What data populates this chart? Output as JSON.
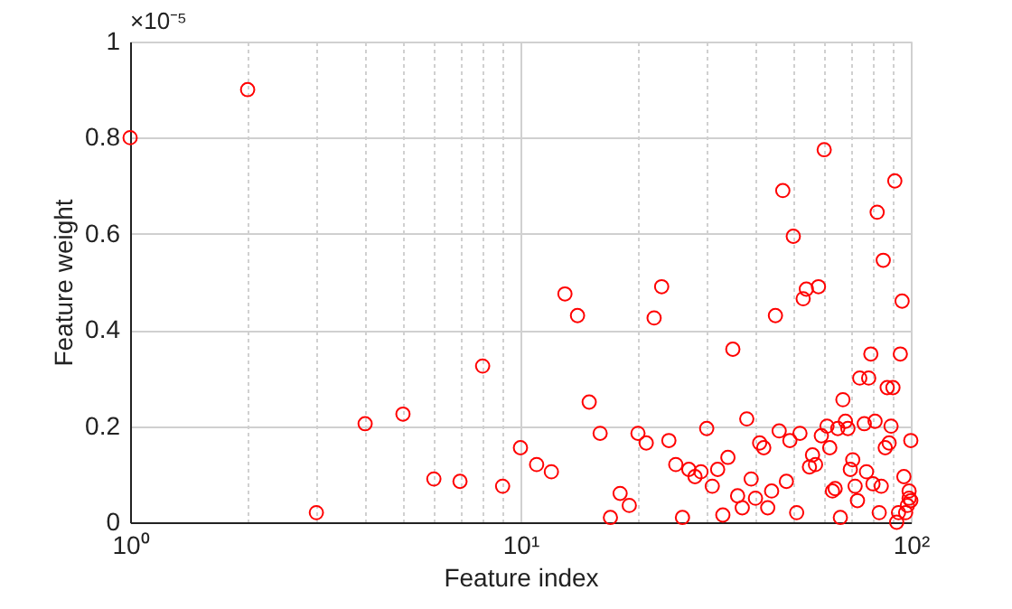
{
  "chart_data": {
    "type": "scatter",
    "xlabel": "Feature index",
    "ylabel": "Feature weight",
    "annotations": [
      "×10⁻⁵"
    ],
    "log": "x",
    "grid": true,
    "marker": "circle",
    "legend": false,
    "xlim": [
      1,
      100
    ],
    "ylim": [
      0,
      1
    ],
    "xticks": [
      {
        "value": 1,
        "label": "10⁰"
      },
      {
        "value": 2,
        "label": null
      },
      {
        "value": 3,
        "label": null
      },
      {
        "value": 4,
        "label": null
      },
      {
        "value": 5,
        "label": null
      },
      {
        "value": 6,
        "label": null
      },
      {
        "value": 7,
        "label": null
      },
      {
        "value": 8,
        "label": null
      },
      {
        "value": 9,
        "label": null
      },
      {
        "value": 10,
        "label": "10¹"
      },
      {
        "value": 20,
        "label": null
      },
      {
        "value": 30,
        "label": null
      },
      {
        "value": 40,
        "label": null
      },
      {
        "value": 50,
        "label": null
      },
      {
        "value": 60,
        "label": null
      },
      {
        "value": 70,
        "label": null
      },
      {
        "value": 80,
        "label": null
      },
      {
        "value": 90,
        "label": null
      },
      {
        "value": 100,
        "label": "10²"
      }
    ],
    "yticks": [
      0,
      0.2,
      0.4,
      0.6,
      0.8,
      1
    ],
    "series": [
      {
        "color": "#ff0000",
        "x": [
          1,
          2,
          3,
          4,
          5,
          6,
          7,
          8,
          9,
          10,
          11,
          12,
          13,
          14,
          15,
          16,
          17,
          18,
          19,
          20,
          21,
          22,
          23,
          24,
          25,
          26,
          27,
          28,
          29,
          30,
          31,
          32,
          33,
          34,
          35,
          36,
          37,
          38,
          39,
          40,
          41,
          42,
          43,
          44,
          45,
          46,
          47,
          48,
          49,
          50,
          51,
          52,
          53,
          54,
          55,
          56,
          57,
          58,
          59,
          60,
          61,
          62,
          63,
          64,
          65,
          66,
          67,
          68,
          69,
          70,
          71,
          72,
          73,
          74,
          76,
          77,
          78,
          79,
          80,
          81,
          82,
          83,
          84,
          85,
          86,
          87,
          88,
          89,
          90,
          91,
          92,
          93,
          94,
          95,
          96,
          97,
          98,
          99,
          100,
          100,
          99
        ],
        "values": [
          0.8,
          0.9,
          0.02,
          0.205,
          0.225,
          0.09,
          0.085,
          0.325,
          0.075,
          0.155,
          0.12,
          0.105,
          0.475,
          0.43,
          0.25,
          0.185,
          0.01,
          0.06,
          0.035,
          0.185,
          0.165,
          0.425,
          0.49,
          0.17,
          0.12,
          0.01,
          0.11,
          0.095,
          0.105,
          0.195,
          0.075,
          0.11,
          0.015,
          0.135,
          0.36,
          0.055,
          0.03,
          0.215,
          0.09,
          0.05,
          0.165,
          0.155,
          0.03,
          0.065,
          0.43,
          0.19,
          0.69,
          0.085,
          0.17,
          0.595,
          0.02,
          0.185,
          0.465,
          0.485,
          0.115,
          0.14,
          0.12,
          0.49,
          0.18,
          0.775,
          0.2,
          0.155,
          0.065,
          0.07,
          0.195,
          0.01,
          0.255,
          0.21,
          0.195,
          0.11,
          0.13,
          0.075,
          0.045,
          0.3,
          0.205,
          0.105,
          0.3,
          0.35,
          0.08,
          0.21,
          0.645,
          0.02,
          0.075,
          0.545,
          0.155,
          0.28,
          0.165,
          0.2,
          0.28,
          0.71,
          0.0,
          0.02,
          0.35,
          0.46,
          0.095,
          0.02,
          0.035,
          0.065,
          0.17,
          0.045,
          0.05
        ]
      }
    ]
  }
}
